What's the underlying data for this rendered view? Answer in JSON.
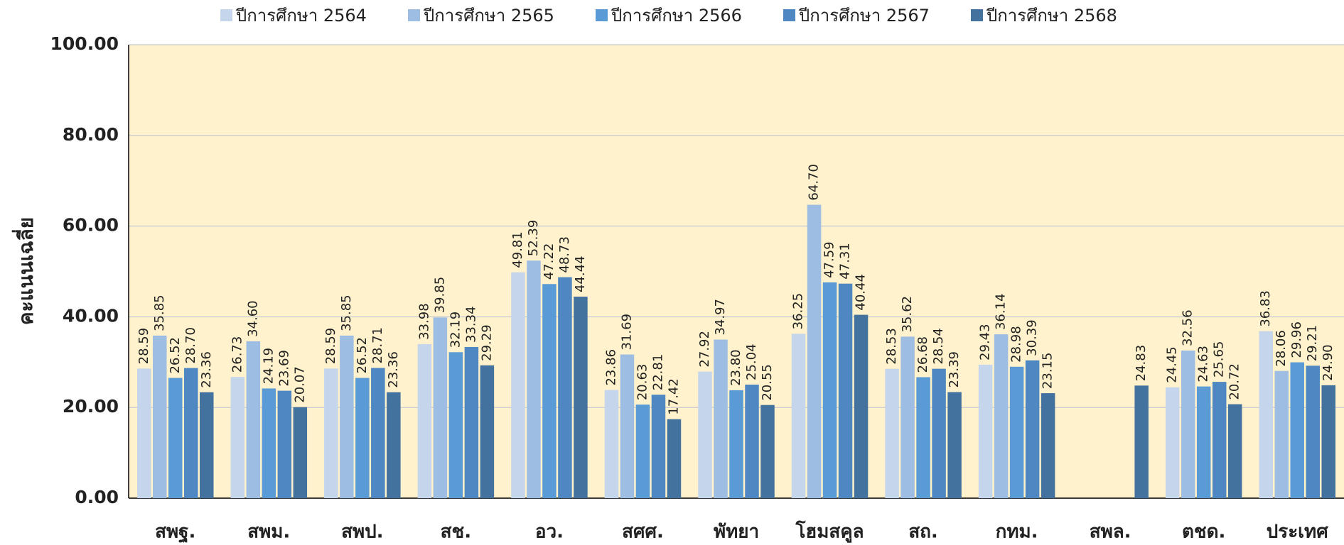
{
  "chart_data": {
    "type": "bar",
    "y_label": "คะแนนเฉลี่ย",
    "categories": [
      "สพฐ.",
      "สพม.",
      "สพป.",
      "สช.",
      "อว.",
      "สศศ.",
      "พัทยา",
      "โฮมสคูล",
      "สถ.",
      "กทม.",
      "สพล.",
      "ตชด.",
      "ประเทศ"
    ],
    "series": [
      {
        "name": "ปีการศึกษา 2564",
        "color": "#c5d5ec",
        "values": [
          28.59,
          26.73,
          28.59,
          33.98,
          49.81,
          23.86,
          27.92,
          36.25,
          28.53,
          29.43,
          null,
          24.45,
          36.83
        ],
        "value_labels": [
          "28.59",
          "26.73",
          "28.59",
          "33.98",
          "49.81",
          "23.86",
          "27.92",
          "36.25",
          "28.53",
          "29.43",
          null,
          "24.45",
          "36.83"
        ]
      },
      {
        "name": "ปีการศึกษา 2565",
        "color": "#9dbde3",
        "values": [
          35.85,
          34.6,
          35.85,
          39.85,
          52.39,
          31.69,
          34.97,
          64.7,
          35.62,
          36.14,
          null,
          32.56,
          28.06
        ],
        "value_labels": [
          "35.85",
          "34.60",
          "35.85",
          "39.85",
          "52.39",
          "31.69",
          "34.97",
          "64.70",
          "35.62",
          "36.14",
          null,
          "32.56",
          "28.06"
        ]
      },
      {
        "name": "ปีการศึกษา 2566",
        "color": "#5b9bd5",
        "values": [
          26.52,
          24.19,
          26.52,
          32.19,
          47.22,
          20.63,
          23.8,
          47.59,
          26.68,
          28.98,
          null,
          24.63,
          29.96
        ],
        "value_labels": [
          "26.52",
          "24.19",
          "26.52",
          "32.19",
          "47.22",
          "20.63",
          "23.80",
          "47.59",
          "26.68",
          "28.98",
          null,
          "24.63",
          "29.96"
        ]
      },
      {
        "name": "ปีการศึกษา 2567",
        "color": "#4e87c1",
        "values": [
          28.7,
          23.69,
          28.71,
          33.34,
          48.73,
          22.81,
          25.04,
          47.31,
          28.54,
          30.39,
          null,
          25.65,
          29.21
        ],
        "value_labels": [
          "28.70",
          "23.69",
          "28.71",
          "33.34",
          "48.73",
          "22.81",
          "25.04",
          "47.31",
          "28.54",
          "30.39",
          null,
          "25.65",
          "29.21"
        ]
      },
      {
        "name": "ปีการศึกษา 2568",
        "color": "#44729e",
        "values": [
          23.36,
          20.07,
          23.36,
          29.29,
          44.44,
          17.42,
          20.55,
          40.44,
          23.39,
          23.15,
          24.83,
          20.72,
          24.9
        ],
        "value_labels": [
          "23.36",
          "20.07",
          "23.36",
          "29.29",
          "44.44",
          "17.42",
          "20.55",
          "40.44",
          "23.39",
          "23.15",
          "24.83",
          "20.72",
          "24.90"
        ]
      }
    ],
    "ylim": [
      0,
      100
    ],
    "yticks": [
      {
        "value": 0,
        "label": "0.00"
      },
      {
        "value": 20,
        "label": "20.00"
      },
      {
        "value": 40,
        "label": "40.00"
      },
      {
        "value": 60,
        "label": "60.00"
      },
      {
        "value": 80,
        "label": "80.00"
      },
      {
        "value": 100,
        "label": "100.00"
      }
    ],
    "grid": true,
    "legend": "top"
  }
}
